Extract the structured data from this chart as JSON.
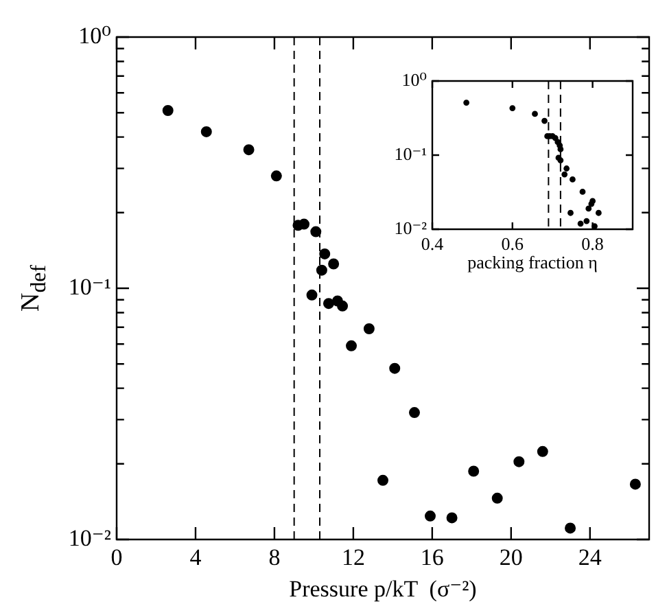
{
  "chart_data": [
    {
      "type": "scatter",
      "xlabel": "Pressure p/kT  (σ⁻²)",
      "ylabel": "N$_{def}$",
      "log": "y",
      "marker": "circle",
      "x": [
        2.6,
        4.55,
        6.7,
        8.1,
        9.2,
        9.5,
        10.1,
        9.9,
        10.4,
        10.55,
        11.0,
        10.75,
        11.2,
        11.45,
        11.9,
        12.8,
        14.1,
        15.1,
        13.5,
        15.9,
        17.0,
        18.1,
        19.3,
        20.4,
        21.6,
        23.0,
        26.3
      ],
      "series": [
        {
          "color": "#000000",
          "values": [
            0.51,
            0.42,
            0.356,
            0.28,
            0.178,
            0.18,
            0.168,
            0.094,
            0.118,
            0.137,
            0.125,
            0.087,
            0.089,
            0.085,
            0.059,
            0.069,
            0.048,
            0.032,
            0.0172,
            0.0124,
            0.0122,
            0.0187,
            0.0146,
            0.0204,
            0.0224,
            0.0111,
            0.0166
          ]
        }
      ],
      "xlim": [
        0,
        27
      ],
      "xticks": [
        0,
        4,
        8,
        12,
        16,
        20,
        24
      ],
      "ylim": [
        0.01,
        1
      ],
      "yticks": [
        {
          "value": 0.01,
          "label": "10⁻²"
        },
        {
          "value": 0.02,
          "label": null
        },
        {
          "value": 0.03,
          "label": null
        },
        {
          "value": 0.04,
          "label": null
        },
        {
          "value": 0.05,
          "label": null
        },
        {
          "value": 0.06,
          "label": null
        },
        {
          "value": 0.07,
          "label": null
        },
        {
          "value": 0.08,
          "label": null
        },
        {
          "value": 0.09,
          "label": null
        },
        {
          "value": 0.1,
          "label": "10⁻¹"
        },
        {
          "value": 0.2,
          "label": null
        },
        {
          "value": 0.3,
          "label": null
        },
        {
          "value": 0.4,
          "label": null
        },
        {
          "value": 0.5,
          "label": null
        },
        {
          "value": 0.6,
          "label": null
        },
        {
          "value": 0.7,
          "label": null
        },
        {
          "value": 0.8,
          "label": null
        },
        {
          "value": 0.9,
          "label": null
        },
        {
          "value": 1,
          "label": "10⁰"
        }
      ],
      "ref_lines": [
        {
          "axis": "x",
          "value": 9.0,
          "color": "#000000",
          "line_style": "dashed"
        },
        {
          "axis": "x",
          "value": 10.3,
          "color": "#000000",
          "line_style": "dashed"
        }
      ]
    },
    {
      "type": "scatter",
      "xlabel": "packing fraction η",
      "log": "y",
      "marker": "circle",
      "x": [
        0.485,
        0.6,
        0.656,
        0.68,
        0.687,
        0.693,
        0.7,
        0.707,
        0.713,
        0.718,
        0.72,
        0.715,
        0.72,
        0.73,
        0.735,
        0.75,
        0.775,
        0.745,
        0.79,
        0.797,
        0.8,
        0.815,
        0.77,
        0.785,
        0.805
      ],
      "series": [
        {
          "color": "#000000",
          "values": [
            0.51,
            0.43,
            0.36,
            0.29,
            0.18,
            0.18,
            0.18,
            0.17,
            0.15,
            0.135,
            0.12,
            0.092,
            0.085,
            0.055,
            0.066,
            0.047,
            0.032,
            0.0166,
            0.019,
            0.022,
            0.024,
            0.0166,
            0.0119,
            0.0129,
            0.011
          ]
        }
      ],
      "xlim": [
        0.4,
        0.9
      ],
      "xticks": [
        0.4,
        0.6,
        0.8
      ],
      "ylim": [
        0.01,
        1
      ],
      "yticks": [
        {
          "value": 0.01,
          "label": "10⁻²"
        },
        {
          "value": 0.1,
          "label": "10⁻¹"
        },
        {
          "value": 1,
          "label": "10⁰"
        }
      ],
      "ref_lines": [
        {
          "axis": "x",
          "value": 0.69,
          "color": "#000000",
          "line_style": "dashed"
        },
        {
          "axis": "x",
          "value": 0.72,
          "color": "#000000",
          "line_style": "dashed"
        }
      ]
    }
  ]
}
